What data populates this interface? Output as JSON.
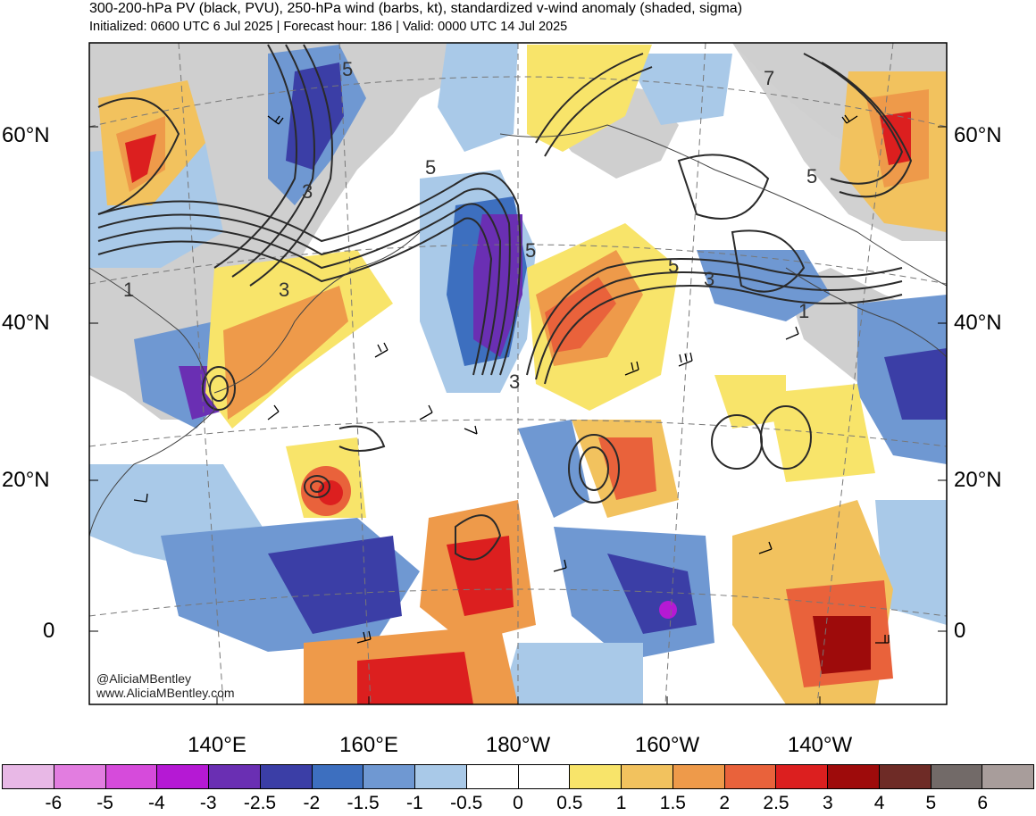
{
  "header": {
    "title": "300-200-hPa PV (black, PVU), 250-hPa wind (barbs, kt), standardized v-wind anomaly (shaded, sigma)",
    "subtitle": "Initialized: 0600 UTC 6 Jul 2025 | Forecast hour: 186 | Valid: 0000 UTC 14 Jul 2025"
  },
  "map": {
    "lat_labels": [
      "60°N",
      "40°N",
      "20°N",
      "0"
    ],
    "lon_labels": [
      "140°E",
      "160°E",
      "180°W",
      "160°W",
      "140°W"
    ],
    "pv_contour_labels": [
      "5",
      "3",
      "5",
      "3",
      "5",
      "3",
      "1",
      "5",
      "3",
      "5",
      "1",
      "7"
    ],
    "credit": {
      "handle": "@AliciaMBentley",
      "url": "www.AliciaMBentley.com"
    }
  },
  "colorbar": {
    "tick_labels": [
      "-6",
      "-5",
      "-4",
      "-3",
      "-2.5",
      "-2",
      "-1.5",
      "-1",
      "-0.5",
      "0",
      "0.5",
      "1",
      "1.5",
      "2",
      "2.5",
      "3",
      "4",
      "5",
      "6"
    ],
    "colors": [
      "#e8b8e6",
      "#e27de0",
      "#d64bdb",
      "#b519d4",
      "#6a2fb3",
      "#3b3ea6",
      "#3d6fbf",
      "#6f98d2",
      "#a9c9e8",
      "#ffffff",
      "#ffffff",
      "#f8e46a",
      "#f2c25e",
      "#ee9a4a",
      "#e9623b",
      "#dc1f1f",
      "#9e0b0b",
      "#6e2b26",
      "#726a68",
      "#a89d9b"
    ]
  }
}
